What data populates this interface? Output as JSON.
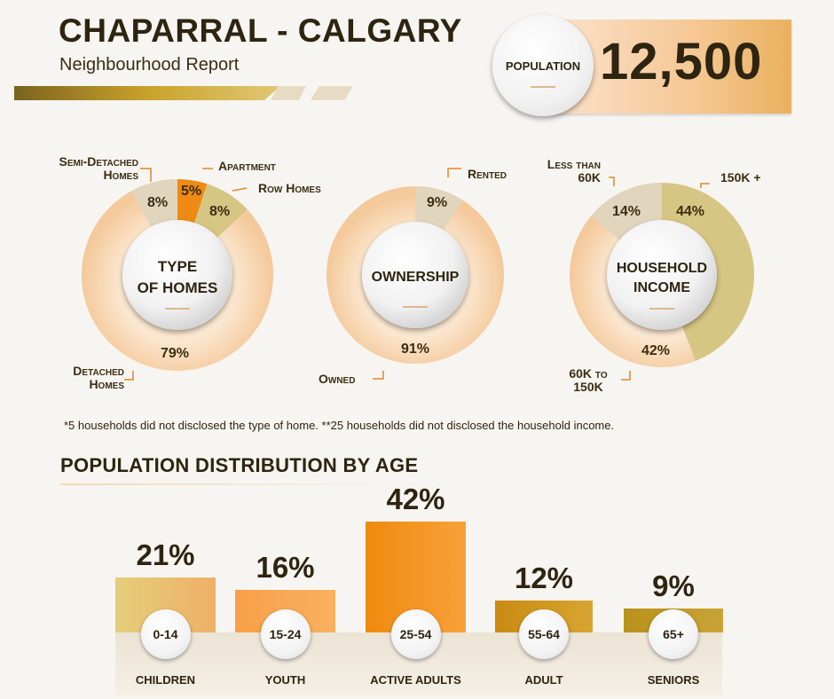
{
  "header": {
    "title": "CHAPARRAL - CALGARY",
    "subtitle": "Neighbourhood Report",
    "population_label": "POPULATION",
    "population_value": "12,500"
  },
  "colors": {
    "dark_text": "#2e2410",
    "light_ring": "#f7dcbc",
    "beige": "#e2d5bd",
    "olive": "#d6c683",
    "orange": "#ef8a14",
    "gold": "#c9a22b"
  },
  "chart_data": [
    {
      "type": "pie",
      "title": "TYPE OF HOMES",
      "categories": [
        "Detached Homes",
        "Semi-Detached Homes",
        "Apartment",
        "Row Homes"
      ],
      "values": [
        79,
        8,
        5,
        8
      ],
      "value_labels": [
        "79%",
        "8%",
        "5%",
        "8%"
      ],
      "label_lines": [
        [
          "Detached",
          "Homes"
        ],
        [
          "Semi-Detached",
          "Homes"
        ],
        [
          "Apartment"
        ],
        [
          "Row Homes"
        ]
      ]
    },
    {
      "type": "pie",
      "title": "OWNERSHIP",
      "categories": [
        "Owned",
        "Rented"
      ],
      "values": [
        91,
        9
      ],
      "value_labels": [
        "91%",
        "9%"
      ],
      "label_lines": [
        [
          "Owned"
        ],
        [
          "Rented"
        ]
      ]
    },
    {
      "type": "pie",
      "title": "HOUSEHOLD INCOME",
      "categories": [
        "Less than 60K",
        "150K +",
        "60K to 150K"
      ],
      "values": [
        14,
        44,
        42
      ],
      "value_labels": [
        "14%",
        "44%",
        "42%"
      ],
      "label_lines": [
        [
          "Less than",
          "60K"
        ],
        [
          "150K +"
        ],
        [
          "60K to",
          "150K"
        ]
      ]
    },
    {
      "type": "bar",
      "title": "POPULATION DISTRIBUTION BY AGE",
      "categories": [
        "0-14",
        "15-24",
        "25-54",
        "55-64",
        "65+"
      ],
      "group_labels": [
        "CHILDREN",
        "YOUTH",
        "ACTIVE ADULTS",
        "ADULT",
        "SENIORS"
      ],
      "values": [
        21,
        16,
        42,
        12,
        9
      ],
      "value_labels": [
        "21%",
        "16%",
        "42%",
        "12%",
        "9%"
      ],
      "ylim": [
        0,
        42
      ]
    }
  ],
  "footnote": "*5 households did not disclosed the type of home.   **25 households did not disclosed the household income.",
  "section_title": "POPULATION DISTRIBUTION BY AGE",
  "donut_titles": {
    "homes": [
      "TYPE",
      "OF HOMES"
    ],
    "ownership": [
      "OWNERSHIP"
    ],
    "income": [
      "HOUSEHOLD",
      "INCOME"
    ]
  }
}
